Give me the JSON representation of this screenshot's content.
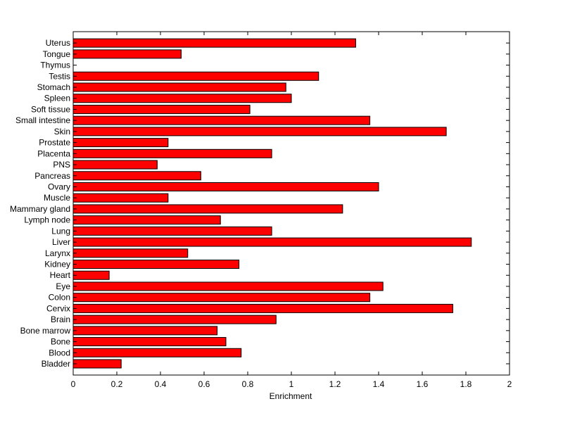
{
  "chart_data": {
    "type": "bar",
    "orientation": "horizontal",
    "title": "",
    "xlabel": "Enrichment",
    "ylabel": "",
    "xlim": [
      0,
      2
    ],
    "xticks": [
      "0",
      "0.2",
      "0.4",
      "0.6",
      "0.8",
      "1",
      "1.2",
      "1.4",
      "1.6",
      "1.8",
      "2"
    ],
    "grid": false,
    "bar_color": "#ff0000",
    "categories": [
      "Bladder",
      "Blood",
      "Bone",
      "Bone marrow",
      "Brain",
      "Cervix",
      "Colon",
      "Eye",
      "Heart",
      "Kidney",
      "Larynx",
      "Liver",
      "Lung",
      "Lymph node",
      "Mammary gland",
      "Muscle",
      "Ovary",
      "Pancreas",
      "PNS",
      "Placenta",
      "Prostate",
      "Skin",
      "Small intestine",
      "Soft tissue",
      "Spleen",
      "Stomach",
      "Testis",
      "Thymus",
      "Tongue",
      "Uterus"
    ],
    "values": [
      0.22,
      0.77,
      0.7,
      0.66,
      0.93,
      1.74,
      1.36,
      1.42,
      0.165,
      0.76,
      0.525,
      1.825,
      0.91,
      0.675,
      1.235,
      0.435,
      1.4,
      0.585,
      0.385,
      0.91,
      0.435,
      1.71,
      1.36,
      0.81,
      1.0,
      0.975,
      1.125,
      0,
      0.495,
      1.295
    ]
  }
}
